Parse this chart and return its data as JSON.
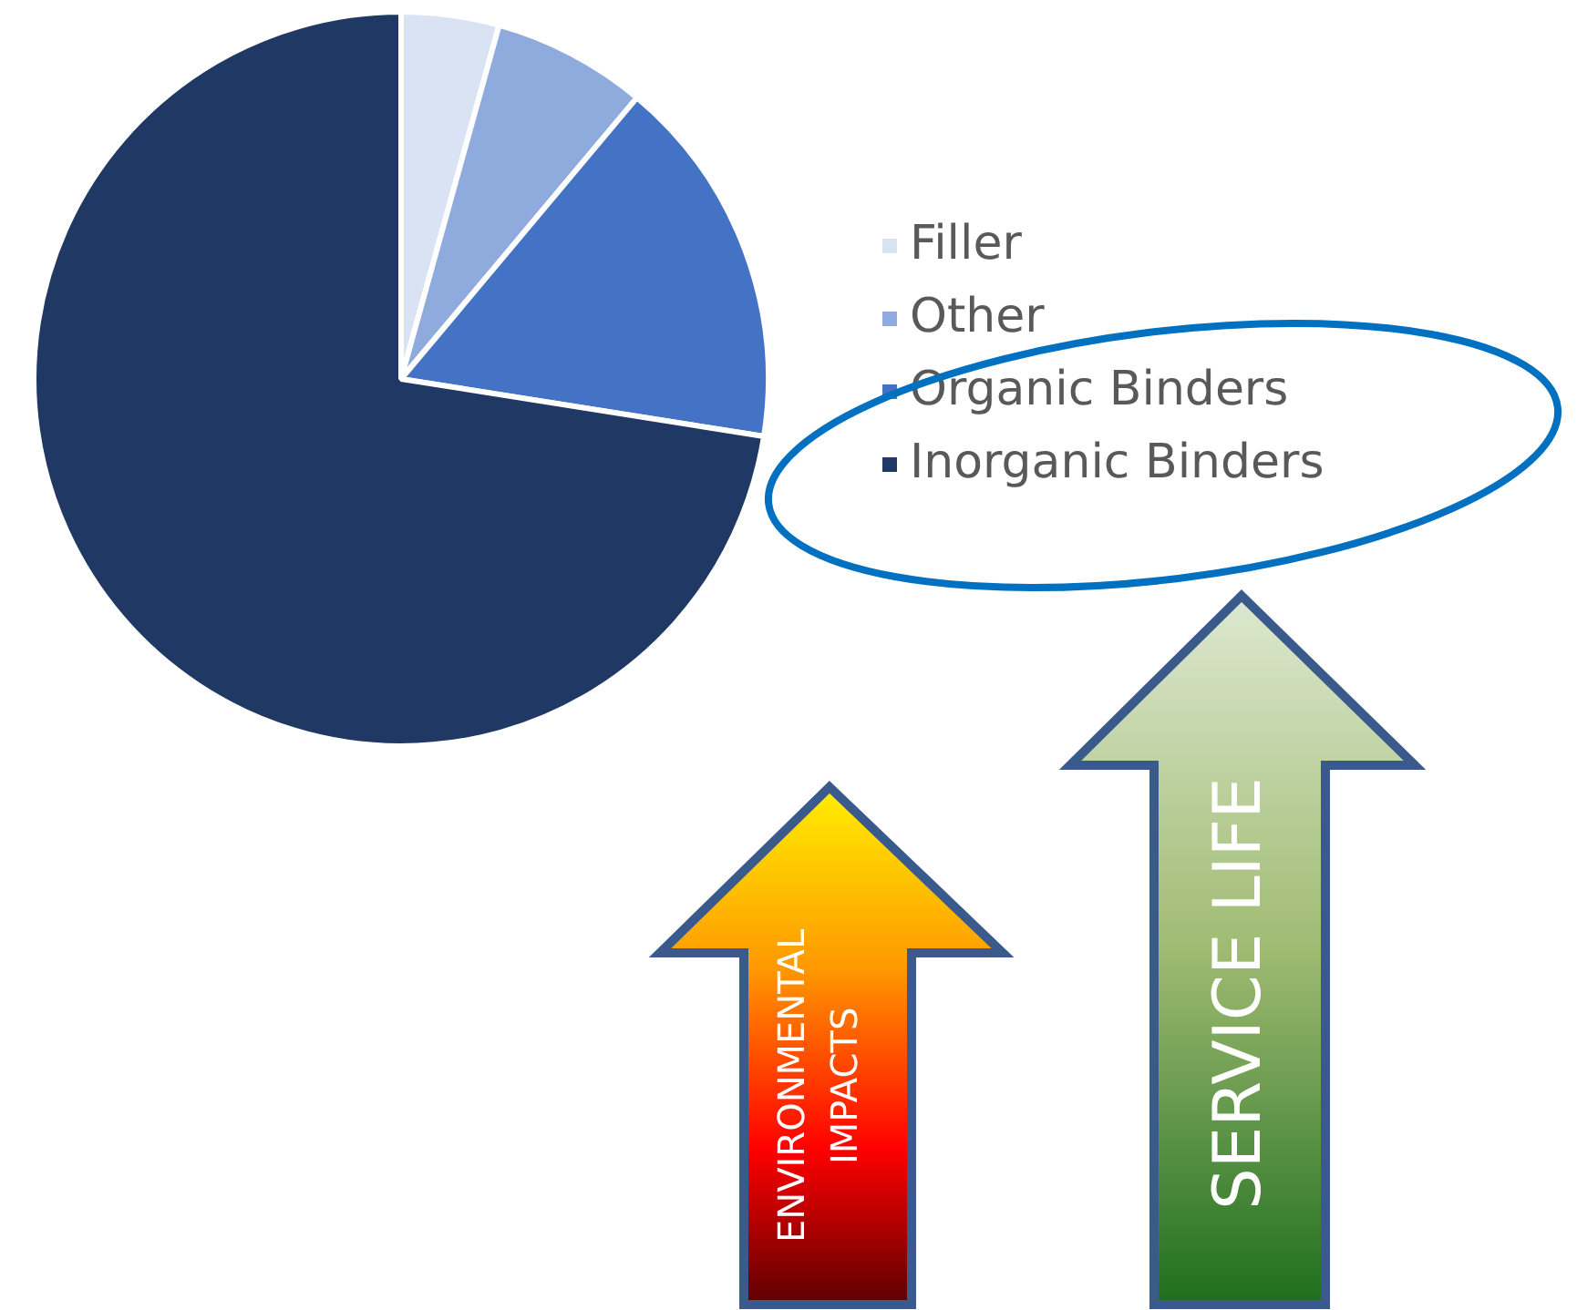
{
  "chart_data": {
    "type": "pie",
    "categories": [
      "Filler",
      "Other",
      "Organic Binders",
      "Inorganic Binders"
    ],
    "values": [
      4.3,
      6.8,
      16.4,
      72.5
    ],
    "colors": [
      "#dae3f3",
      "#8faadc",
      "#4472c4",
      "#1f3864"
    ],
    "legend": "right",
    "annotations": [
      "ENVIRONMENTAL\nIMPACTS",
      "SERVICE LIFE"
    ]
  }
}
